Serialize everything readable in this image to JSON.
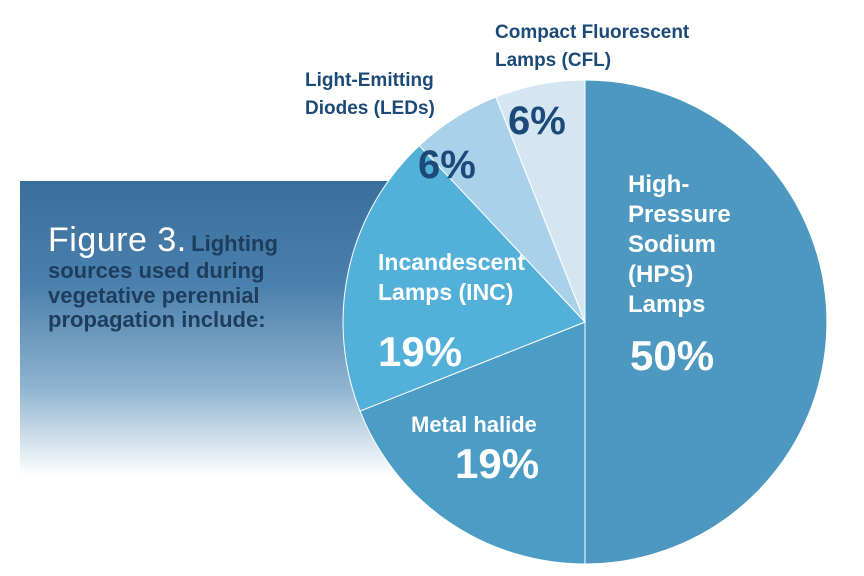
{
  "figure_label": "Figure 3.",
  "caption": "Lighting sources used during vegetative perennial propagation include:",
  "chart_data": {
    "type": "pie",
    "title": "Figure 3. Lighting sources used during vegetative perennial propagation include:",
    "slices": [
      {
        "label_lines": [
          "High-",
          "Pressure",
          "Sodium",
          "(HPS)",
          "Lamps"
        ],
        "value": 50,
        "value_label": "50%",
        "color": "#4d98c0",
        "label_color": "#ffffff"
      },
      {
        "label_lines": [
          "Metal halide"
        ],
        "value": 19,
        "value_label": "19%",
        "color": "#4b9dc5",
        "label_color": "#ffffff"
      },
      {
        "label_lines": [
          "Incandescent",
          "Lamps (INC)"
        ],
        "value": 19,
        "value_label": "19%",
        "color": "#53b1d9",
        "label_color": "#ffffff"
      },
      {
        "label_lines": [
          "Light-Emitting",
          "Diodes (LEDs)"
        ],
        "value": 6,
        "value_label": "6%",
        "color": "#a9d2ea",
        "label_color": "#1c4a78"
      },
      {
        "label_lines": [
          "Compact Fluorescent",
          "Lamps (CFL)"
        ],
        "value": 6,
        "value_label": "6%",
        "color": "#d5e6f3",
        "label_color": "#1c4a78"
      }
    ]
  }
}
